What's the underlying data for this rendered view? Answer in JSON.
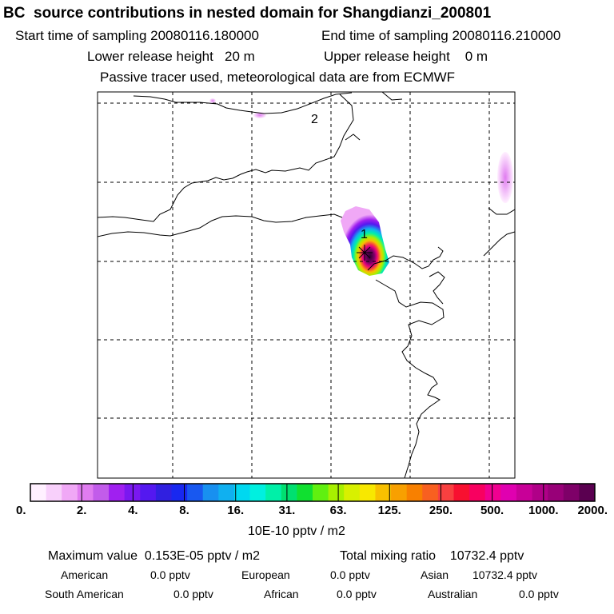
{
  "header": {
    "title": "BC  source contributions in nested domain for Shangdianzi_200801",
    "start_time": "Start time of sampling 20080116.180000",
    "end_time": "End time of sampling 20080116.210000",
    "lower_release": "Lower release height   20 m",
    "upper_release": "Upper release height    0 m",
    "tracer_note": "Passive tracer used, meteorological data are from ECMWF"
  },
  "map": {
    "markers": [
      {
        "label": "1",
        "name": "receptor-marker-1"
      },
      {
        "label": "2",
        "name": "marker-2"
      }
    ]
  },
  "colorbar": {
    "ticks": [
      "0.",
      "2.",
      "4.",
      "8.",
      "16.",
      "31.",
      "63.",
      "125.",
      "250.",
      "500.",
      "1000.",
      "2000."
    ],
    "colors": [
      "#fff0ff",
      "#f8d0fb",
      "#f0a8f6",
      "#e07cf0",
      "#c25cea",
      "#a020f0",
      "#7a18f0",
      "#5418f0",
      "#3020e0",
      "#1828f0",
      "#1858f0",
      "#1890f0",
      "#10b0f0",
      "#00d8f0",
      "#00f0e0",
      "#00f0a8",
      "#00e070",
      "#10e030",
      "#60f010",
      "#a8f000",
      "#d8f000",
      "#f8e800",
      "#f8c000",
      "#f8a000",
      "#f88000",
      "#f86020",
      "#f84040",
      "#f81030",
      "#f80060",
      "#f00090",
      "#e000b0",
      "#c80098",
      "#b00088",
      "#980078",
      "#7e0068",
      "#5a0050"
    ],
    "unit": "10E-10 pptv / m2"
  },
  "summary": {
    "max_value": "Maximum value  0.153E-05 pptv / m2",
    "total_mixing": "Total mixing ratio    10732.4 pptv",
    "regions": [
      {
        "name": "American",
        "value": "0.0 pptv"
      },
      {
        "name": "European",
        "value": "0.0 pptv"
      },
      {
        "name": "Asian",
        "value": "10732.4 pptv"
      },
      {
        "name": "South American",
        "value": "0.0 pptv"
      },
      {
        "name": "African",
        "value": "0.0 pptv"
      },
      {
        "name": "Australian",
        "value": "0.0 pptv"
      }
    ]
  }
}
